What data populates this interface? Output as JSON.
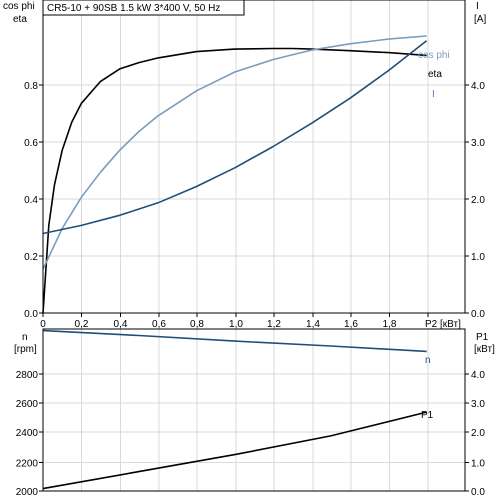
{
  "title": "CR5-10 + 90SB   1.5 kW   3*400 V, 50 Hz",
  "colors": {
    "eta": "#000000",
    "cos_phi": "#7a9cbf",
    "I": "#1f4e79",
    "n": "#1f4e79",
    "P1": "#000000",
    "grid": "#d9d9d9"
  },
  "chart_data": [
    {
      "type": "line",
      "title": "CR5-10 + 90SB   1.5 kW   3*400 V, 50 Hz",
      "xlabel": "P2 [кВт]",
      "xlim": [
        0,
        2.2
      ],
      "xticks": [
        "0",
        "0,2",
        "0,4",
        "0,6",
        "0,8",
        "1,0",
        "1,2",
        "1,4",
        "1,6",
        "1,8",
        "P2 [кВт]"
      ],
      "y_left": {
        "label_line1": "cos phi",
        "label_line2": "eta",
        "lim": [
          0,
          1.0
        ],
        "ticks": [
          "0.0",
          "0.2",
          "0.4",
          "0.6",
          "0.8"
        ]
      },
      "y_right": {
        "label_line1": "I",
        "label_line2": "[A]",
        "lim": [
          0,
          5.0
        ],
        "ticks": [
          "0.0",
          "1.0",
          "2.0",
          "3.0",
          "4.0"
        ]
      },
      "grid": true,
      "series": [
        {
          "name": "eta",
          "axis": "left",
          "color": "#000000",
          "x": [
            0,
            0.03,
            0.06,
            0.1,
            0.15,
            0.2,
            0.3,
            0.4,
            0.5,
            0.6,
            0.8,
            1.0,
            1.2,
            1.3,
            1.4,
            1.6,
            1.8,
            2.0
          ],
          "y": [
            0,
            0.28,
            0.41,
            0.52,
            0.61,
            0.67,
            0.74,
            0.78,
            0.8,
            0.815,
            0.835,
            0.843,
            0.845,
            0.845,
            0.843,
            0.838,
            0.832,
            0.823
          ]
        },
        {
          "name": "cos phi",
          "axis": "left",
          "color": "#7a9cbf",
          "x": [
            0,
            0.1,
            0.2,
            0.3,
            0.4,
            0.5,
            0.6,
            0.8,
            1.0,
            1.2,
            1.4,
            1.6,
            1.8,
            2.0
          ],
          "y": [
            0.14,
            0.27,
            0.37,
            0.45,
            0.52,
            0.58,
            0.63,
            0.71,
            0.77,
            0.81,
            0.84,
            0.86,
            0.875,
            0.885
          ]
        },
        {
          "name": "I",
          "axis": "right",
          "color": "#1f4e79",
          "x": [
            0,
            0.2,
            0.4,
            0.6,
            0.8,
            1.0,
            1.2,
            1.4,
            1.6,
            1.8,
            2.0
          ],
          "y": [
            1.27,
            1.4,
            1.56,
            1.76,
            2.02,
            2.32,
            2.66,
            3.03,
            3.43,
            3.87,
            4.35
          ]
        }
      ]
    },
    {
      "type": "line",
      "xlim": [
        0,
        2.2
      ],
      "y_left": {
        "label_line1": "n",
        "label_line2": "[rpm]",
        "lim": [
          2000,
          3000
        ],
        "ticks": [
          "2000",
          "2200",
          "2400",
          "2600",
          "2800"
        ]
      },
      "y_right": {
        "label_line1": "P1",
        "label_line2": "[кВт]",
        "lim": [
          0,
          5.0
        ],
        "ticks": [
          "0.0",
          "1.0",
          "2.0",
          "3.0",
          "4.0"
        ]
      },
      "grid": true,
      "series": [
        {
          "name": "n",
          "axis": "left",
          "color": "#1f4e79",
          "x": [
            0,
            0.5,
            1.0,
            1.5,
            2.0
          ],
          "y": [
            2990,
            2960,
            2925,
            2895,
            2862
          ]
        },
        {
          "name": "P1",
          "axis": "left",
          "color": "#000000",
          "x": [
            0,
            0.5,
            1.0,
            1.5,
            2.0
          ],
          "y": [
            2015,
            2120,
            2225,
            2340,
            2487
          ]
        }
      ]
    }
  ]
}
